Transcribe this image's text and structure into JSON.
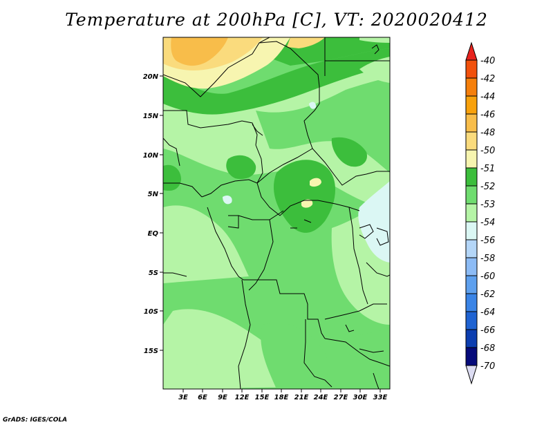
{
  "title": "Temperature at 200hPa [C], VT: 2020020412",
  "footer": "GrADS: IGES/COLA",
  "map": {
    "lat_labels": [
      "20N",
      "15N",
      "10N",
      "5N",
      "EQ",
      "5S",
      "10S",
      "15S"
    ],
    "lon_labels": [
      "3E",
      "6E",
      "9E",
      "12E",
      "15E",
      "18E",
      "21E",
      "24E",
      "27E",
      "30E",
      "33E"
    ]
  },
  "colorbar": {
    "levels": [
      "-40",
      "-42",
      "-44",
      "-46",
      "-48",
      "-50",
      "-51",
      "-52",
      "-53",
      "-54",
      "-56",
      "-58",
      "-60",
      "-62",
      "-64",
      "-66",
      "-68",
      "-70"
    ],
    "colors": [
      "#e8231e",
      "#f2510c",
      "#f57f0b",
      "#f8a10c",
      "#f8bd4a",
      "#fadb7d",
      "#f7f5b0",
      "#3cbe3c",
      "#6fdc6f",
      "#b5f4a6",
      "#dbf7f4",
      "#b4d6f8",
      "#8cbbf5",
      "#5ea0ee",
      "#3a84e6",
      "#1f63d2",
      "#0c3eb0",
      "#050a7a",
      "#dcdcf2"
    ]
  },
  "colors": {
    "green_dark": "#3cbe3c",
    "green_mid": "#6fdc6f",
    "green_light": "#b5f4a6",
    "cyan_light": "#dbf7f4",
    "yellow_light": "#f7f5b0",
    "yellow": "#fadb7d",
    "orange": "#f8bd4a"
  }
}
